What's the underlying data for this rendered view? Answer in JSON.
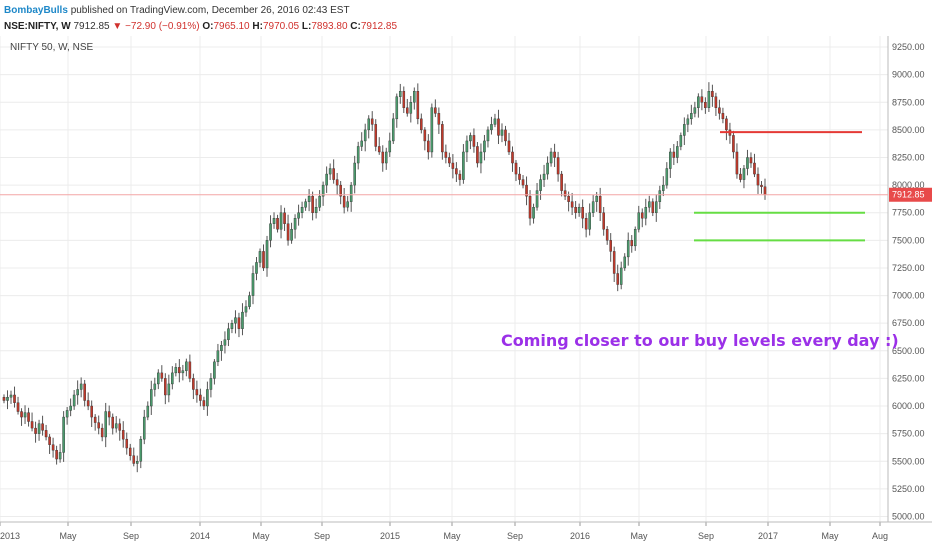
{
  "header": {
    "user": "BombayBulls",
    "published_text": "published on TradingView.com, December 26, 2016 02:43 EST",
    "symbol_interval": "NSE:NIFTY, W",
    "last": "7912.85",
    "change": "▼ −72.90 (−0.91%)",
    "o_label": "O:",
    "o_value": "7965.10",
    "h_label": "H:",
    "h_value": "7970.05",
    "l_label": "L:",
    "l_value": "7893.80",
    "c_label": "C:",
    "c_value": "7912.85"
  },
  "colors": {
    "up": "#4a9a6c",
    "down": "#c0392b",
    "price_line": "#f4a6a6",
    "grid": "#ececec",
    "red_level": "#e53935",
    "green_level": "#66dd44",
    "annotation": "#9b30e8",
    "price_label_bg": "#e84a4a"
  },
  "chart_data": {
    "type": "candlestick",
    "title": "NIFTY 50, W, NSE",
    "x_tick_labels": [
      "2013",
      "May",
      "Sep",
      "2014",
      "May",
      "Sep",
      "2015",
      "May",
      "Sep",
      "2016",
      "May",
      "Sep",
      "2017",
      "May",
      "Aug"
    ],
    "y_tick_labels": [
      "5000.00",
      "5250.00",
      "5500.00",
      "5750.00",
      "6000.00",
      "6250.00",
      "6500.00",
      "6750.00",
      "7000.00",
      "7250.00",
      "7500.00",
      "7750.00",
      "8000.00",
      "8250.00",
      "8500.00",
      "8750.00",
      "9000.00",
      "9250.00"
    ],
    "ylim": [
      4950,
      9350
    ],
    "last_price": 7912.85,
    "last_price_label": "7912.85",
    "levels": [
      {
        "color": "red",
        "value": 8480,
        "from": "2016-09",
        "to": "2017-06"
      },
      {
        "color": "green",
        "value": 7750,
        "from": "2016-08",
        "to": "2017-06"
      },
      {
        "color": "green",
        "value": 7500,
        "from": "2016-08",
        "to": "2017-06"
      }
    ],
    "annotation": "Coming closer to our buy levels every day :)",
    "closes": [
      6050,
      6080,
      6100,
      6030,
      5950,
      5900,
      5940,
      5860,
      5800,
      5750,
      5840,
      5780,
      5720,
      5650,
      5600,
      5520,
      5580,
      5900,
      5960,
      6000,
      6100,
      6150,
      6200,
      6050,
      6000,
      5900,
      5850,
      5800,
      5720,
      5950,
      5900,
      5800,
      5840,
      5780,
      5700,
      5620,
      5550,
      5480,
      5500,
      5700,
      5900,
      6000,
      6150,
      6200,
      6300,
      6250,
      6100,
      6200,
      6300,
      6350,
      6300,
      6320,
      6400,
      6250,
      6150,
      6100,
      6050,
      6000,
      6150,
      6250,
      6400,
      6500,
      6550,
      6600,
      6700,
      6750,
      6800,
      6700,
      6850,
      6900,
      7000,
      7200,
      7300,
      7400,
      7250,
      7500,
      7650,
      7700,
      7600,
      7750,
      7650,
      7500,
      7600,
      7700,
      7750,
      7800,
      7850,
      7900,
      7750,
      7800,
      7900,
      8000,
      8100,
      8150,
      8050,
      8000,
      7900,
      7800,
      7850,
      8000,
      8200,
      8350,
      8400,
      8500,
      8600,
      8550,
      8350,
      8300,
      8200,
      8300,
      8400,
      8600,
      8800,
      8850,
      8700,
      8650,
      8750,
      8850,
      8600,
      8500,
      8400,
      8300,
      8700,
      8650,
      8550,
      8300,
      8250,
      8200,
      8150,
      8100,
      8050,
      8300,
      8400,
      8450,
      8350,
      8200,
      8300,
      8400,
      8500,
      8550,
      8600,
      8450,
      8500,
      8400,
      8300,
      8200,
      8100,
      8050,
      8000,
      7900,
      7700,
      7800,
      7950,
      8050,
      8100,
      8200,
      8300,
      8250,
      8100,
      7950,
      7900,
      7850,
      7800,
      7750,
      7800,
      7700,
      7600,
      7750,
      7850,
      7900,
      7750,
      7600,
      7500,
      7400,
      7200,
      7100,
      7250,
      7350,
      7500,
      7450,
      7600,
      7750,
      7700,
      7800,
      7850,
      7750,
      7850,
      7950,
      8000,
      8150,
      8300,
      8250,
      8350,
      8450,
      8550,
      8600,
      8650,
      8700,
      8800,
      8750,
      8700,
      8850,
      8800,
      8700,
      8650,
      8600,
      8500,
      8450,
      8300,
      8100,
      8050,
      8150,
      8250,
      8200,
      8100,
      8000,
      7985,
      7912.85
    ]
  }
}
